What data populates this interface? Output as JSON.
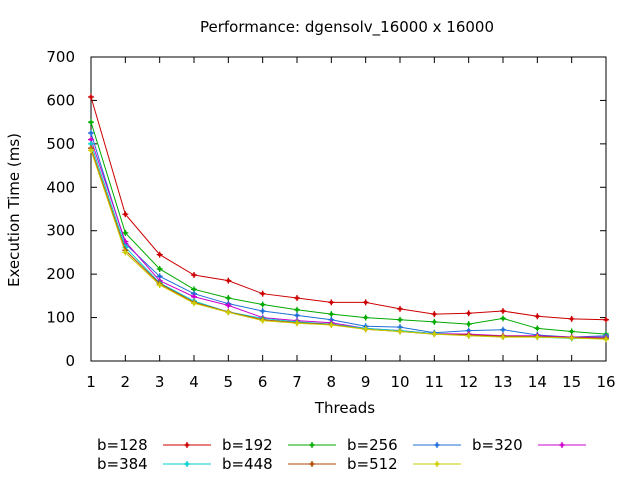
{
  "chart_data": {
    "type": "line",
    "title": "Performance: dgensolv_16000 x 16000",
    "xlabel": "Threads",
    "ylabel": "Execution Time (ms)",
    "xlim": [
      1,
      16
    ],
    "ylim": [
      0,
      700
    ],
    "x_ticks": [
      1,
      2,
      3,
      4,
      5,
      6,
      7,
      8,
      9,
      10,
      11,
      12,
      13,
      14,
      15,
      16
    ],
    "y_ticks": [
      0,
      100,
      200,
      300,
      400,
      500,
      600,
      700
    ],
    "grid": false,
    "legend_position": "bottom",
    "x": [
      1,
      2,
      3,
      4,
      5,
      6,
      7,
      8,
      9,
      10,
      11,
      12,
      13,
      14,
      15,
      16
    ],
    "series": [
      {
        "name": "b=128",
        "color": "#cc0000",
        "values": [
          608,
          338,
          245,
          198,
          185,
          155,
          145,
          135,
          135,
          120,
          108,
          110,
          115,
          103,
          97,
          95
        ]
      },
      {
        "name": "b=192",
        "color": "#00aa00",
        "values": [
          550,
          295,
          212,
          165,
          145,
          130,
          118,
          108,
          100,
          95,
          90,
          85,
          98,
          75,
          68,
          62
        ]
      },
      {
        "name": "b=256",
        "color": "#1e6fd9",
        "values": [
          525,
          270,
          195,
          155,
          132,
          115,
          105,
          95,
          80,
          78,
          65,
          70,
          72,
          60,
          55,
          58
        ]
      },
      {
        "name": "b=320",
        "color": "#cc00cc",
        "values": [
          510,
          275,
          185,
          148,
          128,
          100,
          93,
          88,
          75,
          70,
          63,
          62,
          58,
          58,
          55,
          55
        ]
      },
      {
        "name": "b=384",
        "color": "#00cccc",
        "values": [
          500,
          262,
          180,
          138,
          113,
          98,
          90,
          85,
          75,
          70,
          63,
          58,
          56,
          55,
          52,
          53
        ]
      },
      {
        "name": "b=448",
        "color": "#b04a00",
        "values": [
          490,
          255,
          178,
          135,
          113,
          95,
          88,
          84,
          73,
          68,
          62,
          60,
          57,
          56,
          54,
          52
        ]
      },
      {
        "name": "b=512",
        "color": "#cccc00",
        "values": [
          485,
          250,
          175,
          133,
          112,
          93,
          87,
          83,
          73,
          68,
          62,
          58,
          55,
          55,
          53,
          50
        ]
      }
    ]
  }
}
